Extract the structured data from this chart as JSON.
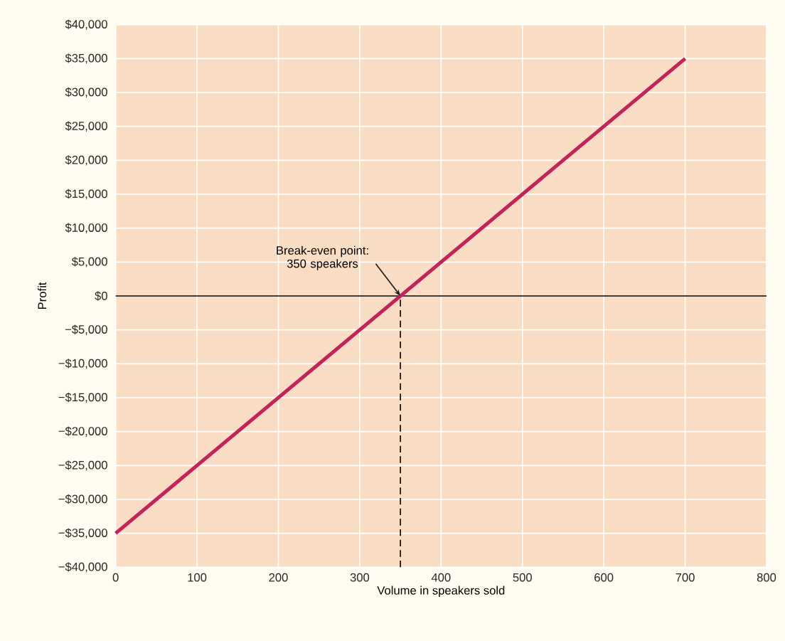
{
  "chart_data": {
    "type": "line",
    "xlabel": "Volume in speakers sold",
    "ylabel": "Profit",
    "x": [
      0,
      700
    ],
    "series": [
      {
        "color": "#c2245a",
        "values": [
          -35000,
          35000
        ]
      }
    ],
    "xlim": [
      0,
      800
    ],
    "xticks": [
      0,
      100,
      200,
      300,
      400,
      500,
      600,
      700,
      800
    ],
    "ylim": [
      -40000,
      40000
    ],
    "yticks": [
      {
        "value": -40000,
        "label": "−$40,000"
      },
      {
        "value": -35000,
        "label": "−$35,000"
      },
      {
        "value": -30000,
        "label": "−$30,000"
      },
      {
        "value": -25000,
        "label": "−$25,000"
      },
      {
        "value": -20000,
        "label": "−$20,000"
      },
      {
        "value": -15000,
        "label": "−$15,000"
      },
      {
        "value": -10000,
        "label": "−$10,000"
      },
      {
        "value": -5000,
        "label": "−$5,000"
      },
      {
        "value": 0,
        "label": "$0"
      },
      {
        "value": 5000,
        "label": "$5,000"
      },
      {
        "value": 10000,
        "label": "$10,000"
      },
      {
        "value": 15000,
        "label": "$15,000"
      },
      {
        "value": 20000,
        "label": "$20,000"
      },
      {
        "value": 25000,
        "label": "$25,000"
      },
      {
        "value": 30000,
        "label": "$30,000"
      },
      {
        "value": 35000,
        "label": "$35,000"
      },
      {
        "value": 40000,
        "label": "$40,000"
      }
    ],
    "grid": true,
    "ref_lines": [
      {
        "axis": "y",
        "value": 0,
        "color": "#000000",
        "line_style": "solid"
      },
      {
        "axis": "x",
        "value": 350,
        "color": "#000000",
        "line_style": "dashed"
      }
    ],
    "annotations": [
      {
        "text": "Break-even point: 350 speakers",
        "x": 350,
        "y": 0
      }
    ]
  }
}
